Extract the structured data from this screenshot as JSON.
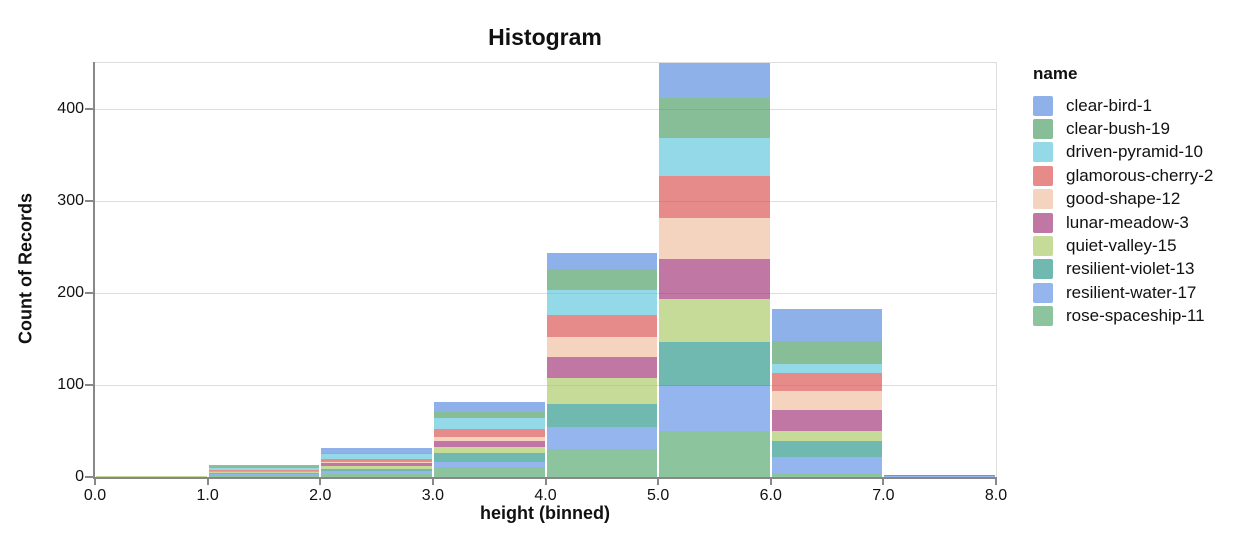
{
  "title": "Histogram",
  "x_axis": {
    "title": "height (binned)",
    "tick_labels": [
      "0.0",
      "1.0",
      "2.0",
      "3.0",
      "4.0",
      "5.0",
      "6.0",
      "7.0",
      "8.0"
    ]
  },
  "y_axis": {
    "title": "Count of Records",
    "ticks": [
      0,
      100,
      200,
      300,
      400
    ],
    "max": 450
  },
  "legend": {
    "title": "name"
  },
  "style": {
    "axis_line_color": "#888888",
    "grid_line_color": "#dddddd",
    "text_color": "#111111",
    "bar_opacity": 0.65
  },
  "chart_data": {
    "type": "bar",
    "subtype": "stacked-histogram",
    "title": "Histogram",
    "xlabel": "height (binned)",
    "ylabel": "Count of Records",
    "bin_edges": [
      0,
      1,
      2,
      3,
      4,
      5,
      6,
      7,
      8
    ],
    "xlim": [
      0,
      8
    ],
    "ylim": [
      0,
      450
    ],
    "grid": true,
    "legend_position": "right",
    "stack_order": "first-series-on-top",
    "bin_totals": [
      1,
      13,
      31,
      82,
      243,
      450,
      183,
      2
    ],
    "series": [
      {
        "name": "clear-bird-1",
        "color": "#5387DD",
        "values": [
          0,
          1,
          5,
          11,
          17,
          38,
          35,
          0
        ]
      },
      {
        "name": "clear-bush-19",
        "color": "#479A5F",
        "values": [
          0,
          2,
          1,
          7,
          23,
          43,
          25,
          0
        ]
      },
      {
        "name": "driven-pyramid-10",
        "color": "#5BC5DB",
        "values": [
          0,
          2,
          5,
          12,
          27,
          42,
          10,
          0
        ]
      },
      {
        "name": "glamorous-cherry-2",
        "color": "#DA4C4C",
        "values": [
          0,
          1,
          4,
          9,
          24,
          45,
          19,
          0
        ]
      },
      {
        "name": "good-shape-12",
        "color": "#EEBD9B",
        "values": [
          0,
          1,
          1,
          4,
          22,
          45,
          21,
          0
        ]
      },
      {
        "name": "lunar-meadow-3",
        "color": "#9E2E73",
        "values": [
          0,
          1,
          3,
          6,
          22,
          44,
          23,
          1
        ]
      },
      {
        "name": "quiet-valley-15",
        "color": "#A8C861",
        "values": [
          1,
          1,
          3,
          7,
          29,
          46,
          11,
          0
        ]
      },
      {
        "name": "resilient-violet-13",
        "color": "#229487",
        "values": [
          0,
          1,
          3,
          10,
          25,
          48,
          17,
          0
        ]
      },
      {
        "name": "resilient-water-17",
        "color": "#5A8DE3",
        "values": [
          0,
          1,
          3,
          5,
          24,
          49,
          18,
          1
        ]
      },
      {
        "name": "rose-spaceship-11",
        "color": "#4FA468",
        "values": [
          0,
          2,
          3,
          11,
          30,
          50,
          4,
          0
        ]
      }
    ]
  }
}
